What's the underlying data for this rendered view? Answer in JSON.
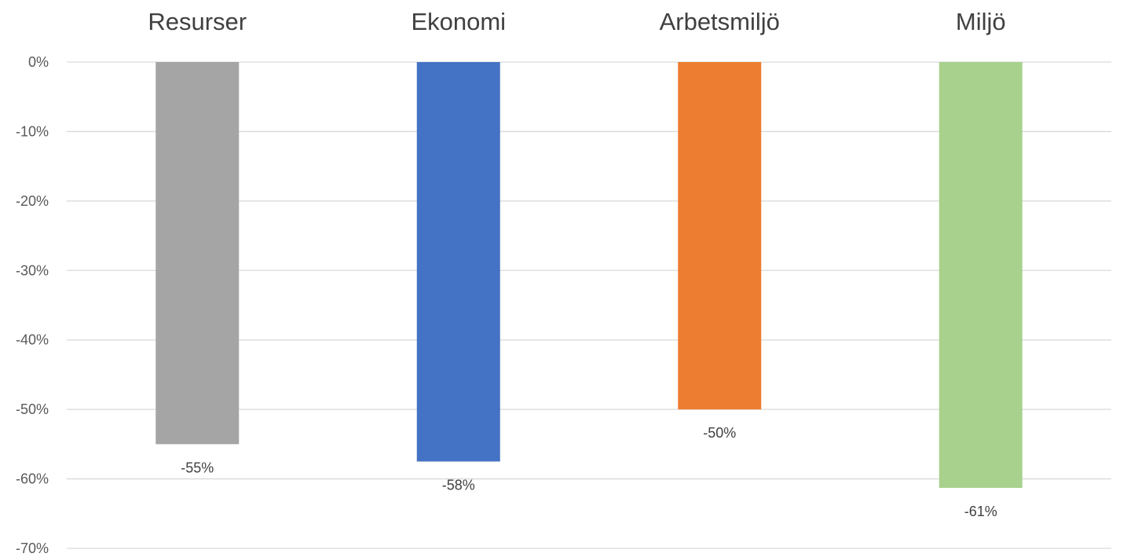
{
  "chart_data": {
    "type": "bar",
    "orientation": "vertical",
    "categories": [
      "Resurser",
      "Ekonomi",
      "Arbetsmiljö",
      "Miljö"
    ],
    "values": [
      -0.55,
      -0.575,
      -0.5,
      -0.613
    ],
    "value_labels": [
      "-55%",
      "-58%",
      "-50%",
      "-61%"
    ],
    "colors": [
      "#a5a5a5",
      "#4472c4",
      "#ed7d31",
      "#a9d18e"
    ],
    "ylim": [
      -0.7,
      0
    ],
    "yticks": [
      0,
      -0.1,
      -0.2,
      -0.3,
      -0.4,
      -0.5,
      -0.6,
      -0.7
    ],
    "ytick_labels": [
      "0%",
      "-10%",
      "-20%",
      "-30%",
      "-40%",
      "-50%",
      "-60%",
      "-70%"
    ],
    "category_axis_position": "top",
    "grid": true,
    "legend": false
  }
}
